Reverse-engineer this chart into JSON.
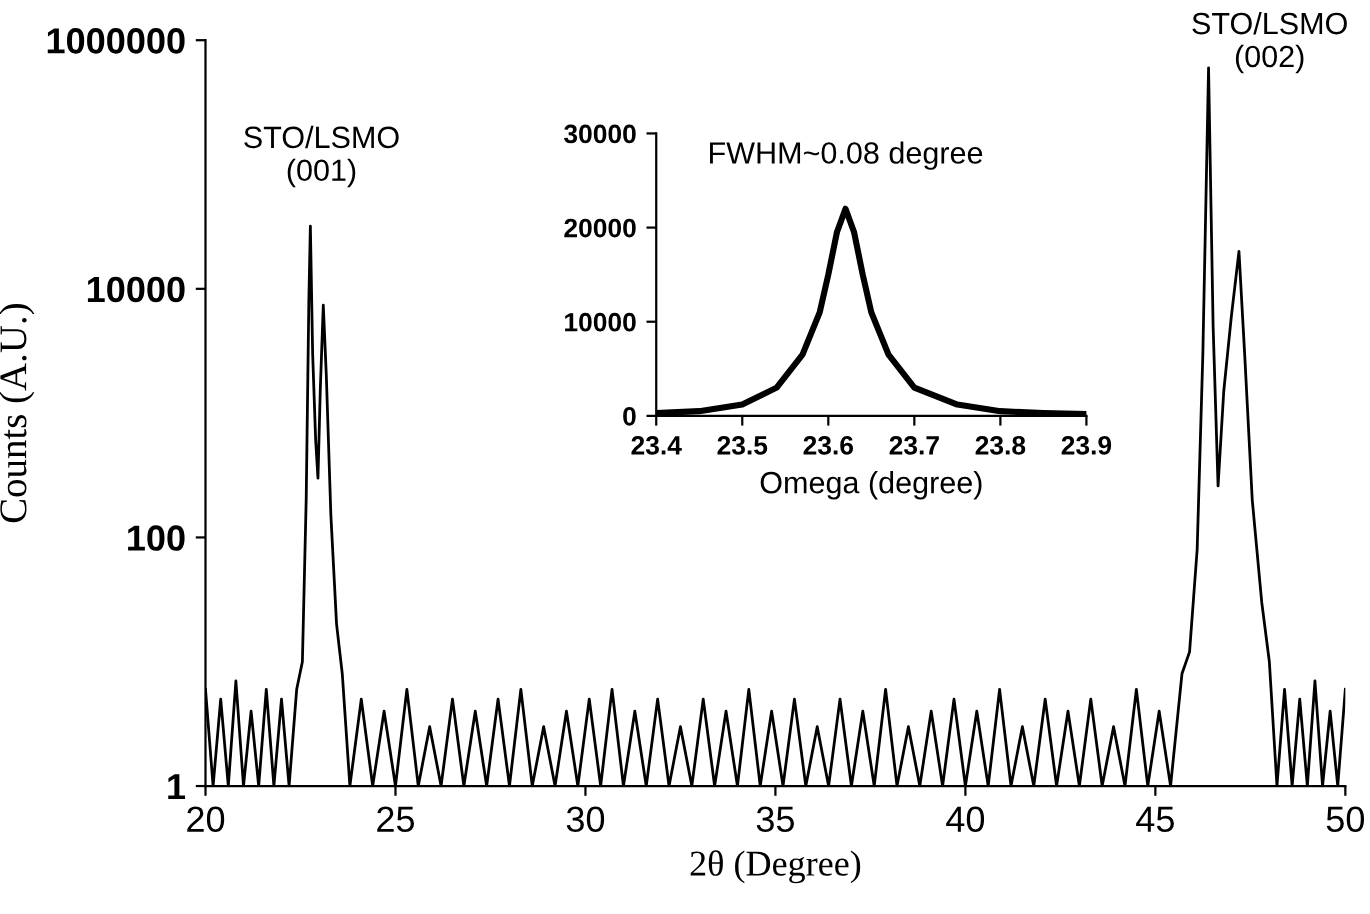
{
  "chart_data": [
    {
      "type": "line",
      "xlabel": "2θ (Degree)",
      "ylabel": "Counts (A.U.)",
      "log": "y",
      "xlim": [
        20,
        50
      ],
      "xticks": [
        20,
        25,
        30,
        35,
        40,
        45,
        50
      ],
      "ylim": [
        1,
        1000000
      ],
      "yticks": [
        1,
        100,
        10000,
        1000000
      ],
      "grid": false,
      "legend": false,
      "marker": "none",
      "line_style": "solid",
      "series": [
        {
          "color": "#000000",
          "x": [
            20,
            20.2,
            20.4,
            20.6,
            20.8,
            21,
            21.2,
            21.4,
            21.6,
            21.8,
            22,
            22.2,
            22.4,
            22.55,
            22.65,
            22.72,
            22.76,
            22.82,
            22.9,
            22.96,
            23.02,
            23.1,
            23.18,
            23.3,
            23.45,
            23.6,
            23.8,
            24.1,
            24.4,
            24.7,
            25,
            25.3,
            25.6,
            25.9,
            26.2,
            26.5,
            26.8,
            27.1,
            27.4,
            27.7,
            28,
            28.3,
            28.6,
            28.9,
            29.2,
            29.5,
            29.8,
            30.1,
            30.4,
            30.7,
            31,
            31.3,
            31.6,
            31.9,
            32.2,
            32.5,
            32.8,
            33.1,
            33.4,
            33.7,
            34,
            34.3,
            34.6,
            34.9,
            35.2,
            35.5,
            35.8,
            36.1,
            36.4,
            36.7,
            37,
            37.3,
            37.6,
            37.9,
            38.2,
            38.5,
            38.8,
            39.1,
            39.4,
            39.7,
            40,
            40.3,
            40.6,
            40.9,
            41.2,
            41.5,
            41.8,
            42.1,
            42.4,
            42.7,
            43,
            43.3,
            43.6,
            43.9,
            44.2,
            44.5,
            44.8,
            45.1,
            45.4,
            45.7,
            45.9,
            46.1,
            46.25,
            46.4,
            46.52,
            46.65,
            46.8,
            47.0,
            47.2,
            47.35,
            47.55,
            47.8,
            48.0,
            48.2,
            48.4,
            48.6,
            48.8,
            49,
            49.2,
            49.4,
            49.6,
            49.8,
            50
          ],
          "values": [
            6,
            1,
            5,
            1,
            7,
            1,
            4,
            1,
            6,
            1,
            5,
            1,
            6,
            10,
            200,
            8000,
            32000,
            3000,
            600,
            300,
            1500,
            7400,
            2000,
            150,
            20,
            8,
            1,
            5,
            1,
            4,
            1,
            6,
            1,
            3,
            1,
            5,
            1,
            4,
            1,
            5,
            1,
            6,
            1,
            3,
            1,
            4,
            1,
            5,
            1,
            6,
            1,
            4,
            1,
            5,
            1,
            3,
            1,
            5,
            1,
            4,
            1,
            6,
            1,
            4,
            1,
            5,
            1,
            3,
            1,
            5,
            1,
            4,
            1,
            6,
            1,
            3,
            1,
            4,
            1,
            5,
            1,
            4,
            1,
            6,
            1,
            3,
            1,
            5,
            1,
            4,
            1,
            5,
            1,
            3,
            1,
            6,
            1,
            4,
            1,
            8,
            12,
            80,
            3000,
            600000,
            5000,
            260,
            1500,
            6000,
            20000,
            3000,
            200,
            30,
            10,
            1,
            6,
            1,
            5,
            1,
            7,
            1,
            4,
            1,
            6
          ]
        }
      ],
      "annotations": [
        {
          "text": "STO/LSMO\n(001)",
          "x": 22.76,
          "y": 32000
        },
        {
          "text": "STO/LSMO\n(002)",
          "x": 46.4,
          "y": 600000
        }
      ]
    },
    {
      "type": "line",
      "xlabel": "Omega (degree)",
      "xlim": [
        23.4,
        23.9
      ],
      "xticks": [
        23.4,
        23.5,
        23.6,
        23.7,
        23.8,
        23.9
      ],
      "ylim": [
        0,
        30000
      ],
      "yticks": [
        0,
        10000,
        20000,
        30000
      ],
      "grid": false,
      "legend": false,
      "marker": "none",
      "line_style": "solid",
      "series": [
        {
          "color": "#000000",
          "x": [
            23.4,
            23.45,
            23.5,
            23.54,
            23.57,
            23.59,
            23.6,
            23.61,
            23.62,
            23.63,
            23.64,
            23.65,
            23.67,
            23.7,
            23.75,
            23.8,
            23.85,
            23.9
          ],
          "values": [
            300,
            500,
            1200,
            3000,
            6500,
            11000,
            15000,
            19500,
            22000,
            19500,
            15000,
            11000,
            6500,
            3000,
            1200,
            500,
            300,
            200
          ]
        }
      ],
      "annotations": [
        {
          "text": "FWHM~0.08 degree",
          "x": 23.62,
          "y": 22000
        }
      ]
    }
  ]
}
